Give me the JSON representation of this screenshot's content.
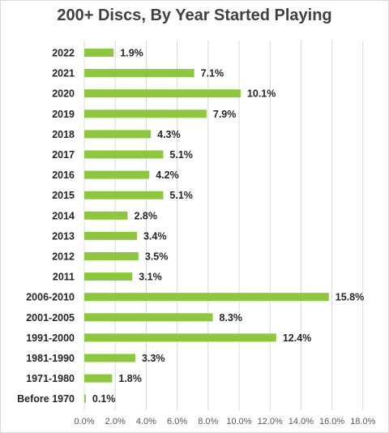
{
  "chart_data": {
    "type": "bar",
    "orientation": "horizontal",
    "title": "200+ Discs, By Year Started Playing",
    "categories": [
      "2022",
      "2021",
      "2020",
      "2019",
      "2018",
      "2017",
      "2016",
      "2015",
      "2014",
      "2013",
      "2012",
      "2011",
      "2006-2010",
      "2001-2005",
      "1991-2000",
      "1981-1990",
      "1971-1980",
      "Before 1970"
    ],
    "values": [
      1.9,
      7.1,
      10.1,
      7.9,
      4.3,
      5.1,
      4.2,
      5.1,
      2.8,
      3.4,
      3.5,
      3.1,
      15.8,
      8.3,
      12.4,
      3.3,
      1.8,
      0.1
    ],
    "data_labels": [
      "1.9%",
      "7.1%",
      "10.1%",
      "7.9%",
      "4.3%",
      "5.1%",
      "4.2%",
      "5.1%",
      "2.8%",
      "3.4%",
      "3.5%",
      "3.1%",
      "15.8%",
      "8.3%",
      "12.4%",
      "3.3%",
      "1.8%",
      "0.1%"
    ],
    "xlim": [
      0,
      18
    ],
    "x_ticks": [
      "0.0%",
      "2.0%",
      "4.0%",
      "6.0%",
      "8.0%",
      "10.0%",
      "12.0%",
      "14.0%",
      "16.0%",
      "18.0%"
    ],
    "xlabel": "",
    "ylabel": "",
    "grid": "vertical",
    "legend": "none",
    "colors": {
      "bar": "#8dc63f",
      "grid": "#d9d9d9",
      "text": "#262626",
      "title": "#404040",
      "tick": "#595959"
    }
  }
}
